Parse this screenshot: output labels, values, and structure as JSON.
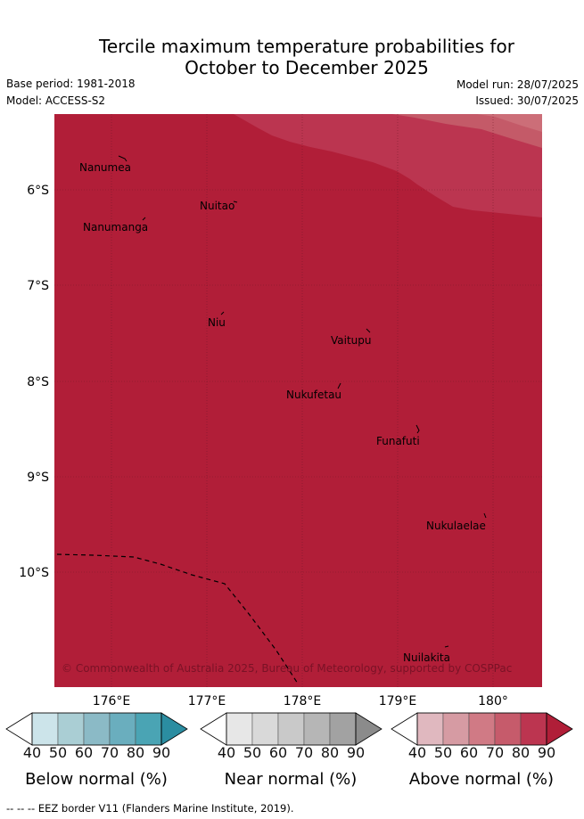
{
  "title_line1": "Tercile maximum temperature probabilities for",
  "title_line2": "October to December 2025",
  "base_period": "Base period: 1981-2018",
  "model": "Model: ACCESS-S2",
  "model_run": "Model run: 28/07/2025",
  "issued": "Issued: 30/07/2025",
  "lat_ticks": [
    "6°S",
    "7°S",
    "8°S",
    "9°S",
    "10°S"
  ],
  "lon_ticks": [
    "176°E",
    "177°E",
    "178°E",
    "179°E",
    "180°"
  ],
  "places": {
    "nanumea": "Nanumea",
    "nuitao": "Nuitao",
    "nanumanga": "Nanumanga",
    "niu": "Niu",
    "vaitupu": "Vaitupu",
    "nukufetau": "Nukufetau",
    "funafuti": "Funafuti",
    "nukulaelae": "Nukulaelae",
    "nuilakita": "Nuilakita"
  },
  "copyright": "© Commonwealth of Australia 2025, Bureau of Meteorology, supported by COSPPac",
  "legend": {
    "below": {
      "label": "Below normal (%)",
      "colors": [
        "#ffffff",
        "#cce4ea",
        "#aaced4",
        "#8bbac6",
        "#6aaebe",
        "#4aa4b4",
        "#2b8da1"
      ]
    },
    "near": {
      "label": "Near normal (%)",
      "colors": [
        "#ffffff",
        "#e7e7e7",
        "#d9d9d9",
        "#c9c9c9",
        "#b6b6b6",
        "#a2a2a2",
        "#8b8b8b"
      ]
    },
    "above": {
      "label": "Above normal (%)",
      "colors": [
        "#ffffff",
        "#e0b8bf",
        "#d69ba3",
        "#d07a85",
        "#c65b6b",
        "#bc3550",
        "#b01e38"
      ]
    },
    "tick_labels": [
      "40",
      "50",
      "60",
      "70",
      "80",
      "90"
    ]
  },
  "map_colors": {
    "base": "#b11e38",
    "band_80": "#bb3550",
    "band_70": "#c45a68",
    "band_60": "#cc6e78"
  },
  "footnote": "-- -- -- EEZ border V11 (Flanders Marine Institute, 2019)."
}
